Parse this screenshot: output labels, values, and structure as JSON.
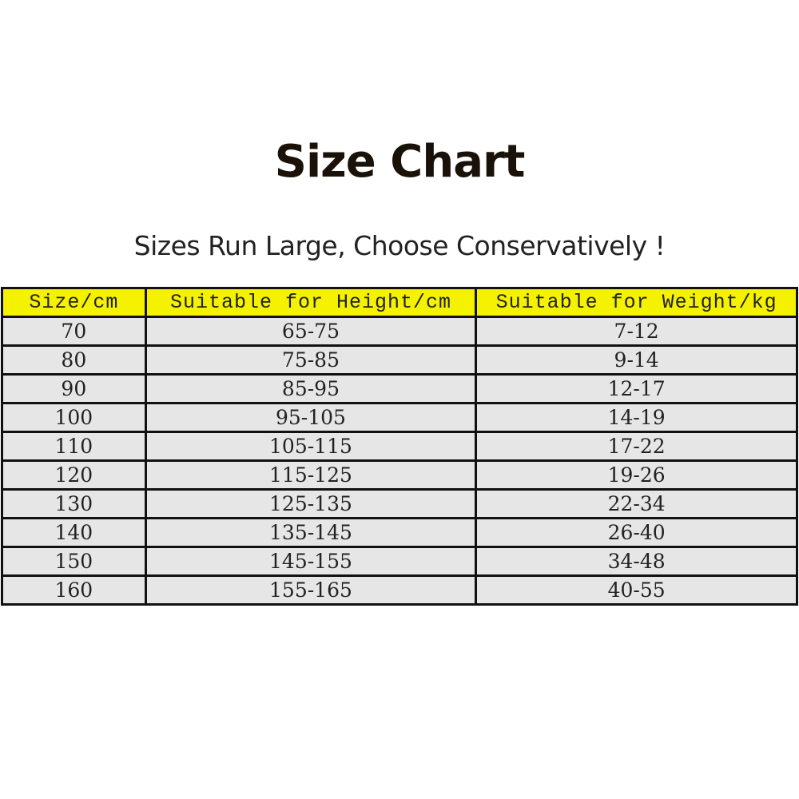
{
  "title": "Size Chart",
  "subtitle": "Sizes Run Large, Choose Conservatively !",
  "table": {
    "headers": [
      "Size/cm",
      "Suitable for Height/cm",
      "Suitable for Weight/kg"
    ],
    "rows": [
      [
        "70",
        "65-75",
        "7-12"
      ],
      [
        "80",
        "75-85",
        "9-14"
      ],
      [
        "90",
        "85-95",
        "12-17"
      ],
      [
        "100",
        "95-105",
        "14-19"
      ],
      [
        "110",
        "105-115",
        "17-22"
      ],
      [
        "120",
        "115-125",
        "19-26"
      ],
      [
        "130",
        "125-135",
        "22-34"
      ],
      [
        "140",
        "135-145",
        "26-40"
      ],
      [
        "150",
        "145-155",
        "34-48"
      ],
      [
        "160",
        "155-165",
        "40-55"
      ]
    ],
    "header_color": "#f5f200",
    "row_color": "#e6e6e6"
  }
}
